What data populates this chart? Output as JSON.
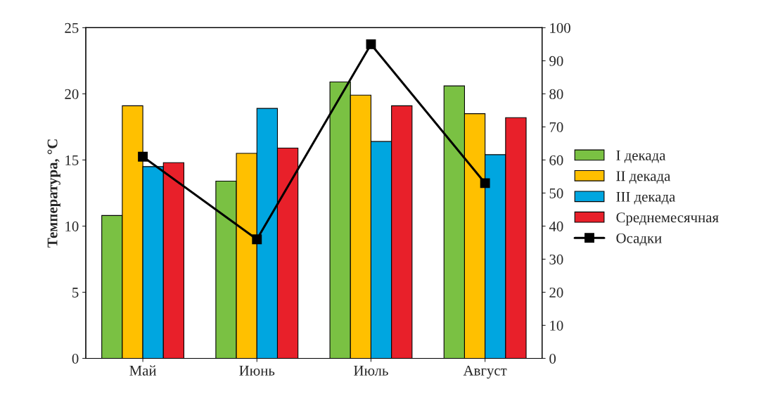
{
  "chart_data": {
    "type": "bar",
    "ylabel": "Температура, °C",
    "categories": [
      "Май",
      "Июнь",
      "Июль",
      "Август"
    ],
    "series": [
      {
        "name": "I декада",
        "color": "#7ac143",
        "values": [
          10.8,
          13.4,
          20.9,
          20.6
        ]
      },
      {
        "name": "II декада",
        "color": "#ffc000",
        "values": [
          19.1,
          15.5,
          19.9,
          18.5
        ]
      },
      {
        "name": "III декада",
        "color": "#00a6e0",
        "values": [
          14.5,
          18.9,
          16.4,
          15.4
        ]
      },
      {
        "name": "Среднемесячная",
        "color": "#e8202a",
        "values": [
          14.8,
          15.9,
          19.1,
          18.2
        ]
      },
      {
        "name": "Осадки",
        "type": "line",
        "axis": "y2",
        "color": "#000000",
        "marker": "square",
        "values": [
          61,
          36,
          95,
          53
        ]
      }
    ],
    "ylim": [
      0,
      25
    ],
    "yticks": [
      0,
      5,
      10,
      15,
      20,
      25
    ],
    "y2lim": [
      0,
      100
    ],
    "y2ticks": [
      0,
      10,
      20,
      30,
      40,
      50,
      60,
      70,
      80,
      90,
      100
    ],
    "grid": false,
    "legend": "right"
  }
}
